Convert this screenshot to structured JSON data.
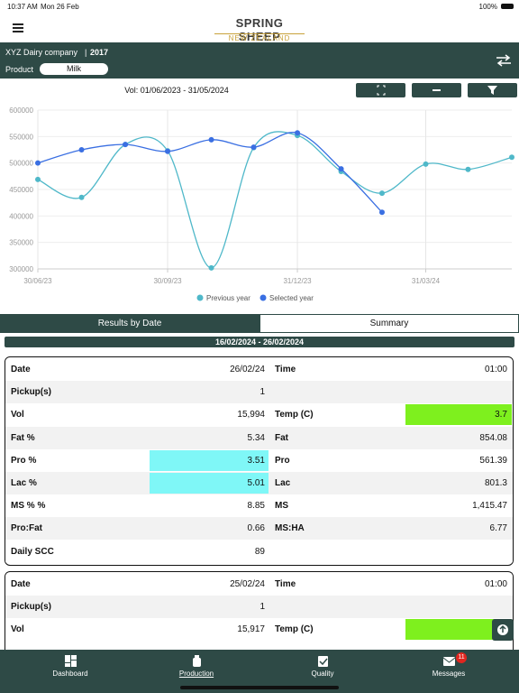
{
  "status_bar": {
    "time": "10:37 AM",
    "date": "Mon 26 Feb",
    "battery": "100%"
  },
  "header": {
    "logo_top": "SPRING SHEEP",
    "logo_bottom": "NEW ZEALAND"
  },
  "farm": {
    "company": "XYZ Dairy company",
    "year": "2017",
    "product_label": "Product",
    "product": "Milk"
  },
  "chart_data": {
    "type": "line",
    "title": "Vol: 01/06/2023 - 31/05/2024",
    "x": [
      "30/06/23",
      "31/07/23",
      "31/08/23",
      "30/09/23",
      "31/10/23",
      "30/11/23",
      "31/12/23",
      "31/01/24",
      "29/02/24",
      "31/03/24",
      "30/04/24",
      "31/05/24"
    ],
    "series": [
      {
        "name": "Previous year",
        "color": "#4fb8c9",
        "values": [
          469000,
          435000,
          535000,
          523000,
          302000,
          529000,
          552000,
          484000,
          443000,
          498000,
          488000,
          511000
        ]
      },
      {
        "name": "Selected year",
        "color": "#3a6fe2",
        "values": [
          500000,
          525000,
          535000,
          522000,
          544000,
          530000,
          557000,
          489000,
          407000,
          null,
          null,
          null
        ]
      }
    ],
    "xlim": [
      "30/06/23",
      "31/05/24"
    ],
    "xticks": [
      "30/06/23",
      "30/09/23",
      "31/12/23",
      "31/03/24"
    ],
    "ylim": [
      300000,
      600000
    ],
    "yticks": [
      300000,
      350000,
      400000,
      450000,
      500000,
      550000,
      600000
    ],
    "grid": true,
    "legend": "bottom"
  },
  "tabs": [
    "Results by Date",
    "Summary"
  ],
  "range": "16/02/2024 - 26/02/2024",
  "cards": [
    {
      "rows": [
        {
          "label": "Date",
          "value": "26/02/24",
          "label2": "Time",
          "value2": "01:00"
        },
        {
          "label": "Pickup(s)",
          "value": "1"
        },
        {
          "label": "Vol",
          "value": "15,994",
          "label2": "Temp (C)",
          "value2": "3.7",
          "value2_color": "#7ef01e"
        },
        {
          "label": "Fat %",
          "value": "5.34",
          "label2": "Fat",
          "value2": "854.08"
        },
        {
          "label": "Pro %",
          "value": "3.51",
          "value_color": "#7ff7f7",
          "label2": "Pro",
          "value2": "561.39"
        },
        {
          "label": "Lac %",
          "value": "5.01",
          "value_color": "#7ff7f7",
          "label2": "Lac",
          "value2": "801.3"
        },
        {
          "label": "MS % %",
          "value": "8.85",
          "label2": "MS",
          "value2": "1,415.47"
        },
        {
          "label": "Pro:Fat",
          "value": "0.66",
          "label2": "MS:HA",
          "value2": "6.77"
        },
        {
          "label": "Daily SCC",
          "value": "89"
        }
      ]
    },
    {
      "rows": [
        {
          "label": "Date",
          "value": "25/02/24",
          "label2": "Time",
          "value2": "01:00"
        },
        {
          "label": "Pickup(s)",
          "value": "1"
        },
        {
          "label": "Vol",
          "value": "15,917",
          "label2": "Temp (C)",
          "value2_color": "#7ef01e"
        }
      ]
    }
  ],
  "nav": [
    {
      "label": "Dashboard"
    },
    {
      "label": "Production"
    },
    {
      "label": "Quality"
    },
    {
      "label": "Messages",
      "badge": "11"
    }
  ]
}
